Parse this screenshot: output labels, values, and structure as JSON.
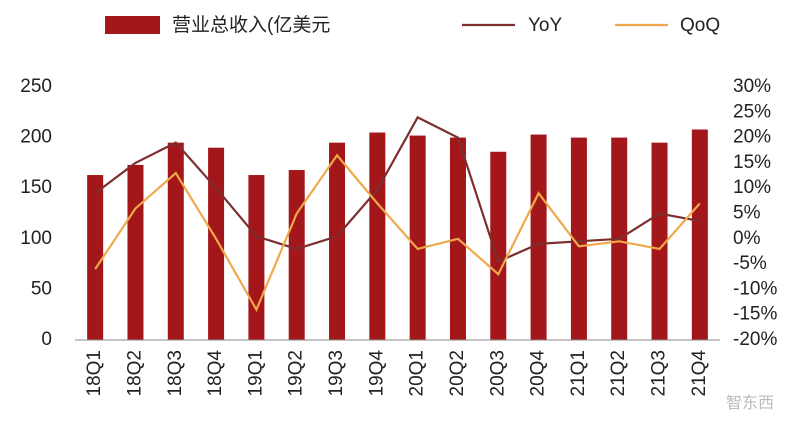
{
  "chart_data": {
    "type": "bar_line",
    "categories": [
      "18Q1",
      "18Q2",
      "18Q3",
      "18Q4",
      "19Q1",
      "19Q2",
      "19Q3",
      "19Q4",
      "20Q1",
      "20Q2",
      "20Q3",
      "20Q4",
      "21Q1",
      "21Q2",
      "21Q3",
      "21Q4"
    ],
    "series": [
      {
        "name": "营业总收入(亿美元",
        "type": "bar",
        "color": "#a3161a",
        "values": [
          163,
          173,
          195,
          190,
          163,
          168,
          195,
          205,
          202,
          200,
          186,
          203,
          200,
          200,
          195,
          208
        ]
      },
      {
        "name": "YoY",
        "type": "line",
        "axis": "y2",
        "color": "#7d2e2e",
        "values": [
          9,
          15,
          19,
          10,
          0.5,
          -2,
          0.5,
          9.7,
          24,
          20,
          -4.5,
          -1,
          -0.5,
          0,
          5,
          3.5
        ]
      },
      {
        "name": "QoQ",
        "type": "line",
        "axis": "y2",
        "color": "#f0a84a",
        "values": [
          -6,
          6,
          13,
          0,
          -14,
          5,
          16.5,
          7,
          -2,
          0,
          -7,
          9,
          -1.5,
          -0.5,
          -2,
          7
        ]
      }
    ],
    "ylim": [
      0,
      250
    ],
    "yticks": [
      0,
      50,
      100,
      150,
      200,
      250
    ],
    "y2lim": [
      -20,
      30
    ],
    "y2ticks": [
      {
        "value": -20,
        "label": "-20%"
      },
      {
        "value": -15,
        "label": "-15%"
      },
      {
        "value": -10,
        "label": "-10%"
      },
      {
        "value": -5,
        "label": "-5%"
      },
      {
        "value": 0,
        "label": "0%"
      },
      {
        "value": 5,
        "label": "5%"
      },
      {
        "value": 10,
        "label": "10%"
      },
      {
        "value": 15,
        "label": "15%"
      },
      {
        "value": 20,
        "label": "20%"
      },
      {
        "value": 25,
        "label": "25%"
      },
      {
        "value": 30,
        "label": "30%"
      }
    ],
    "watermark": "智东西"
  }
}
